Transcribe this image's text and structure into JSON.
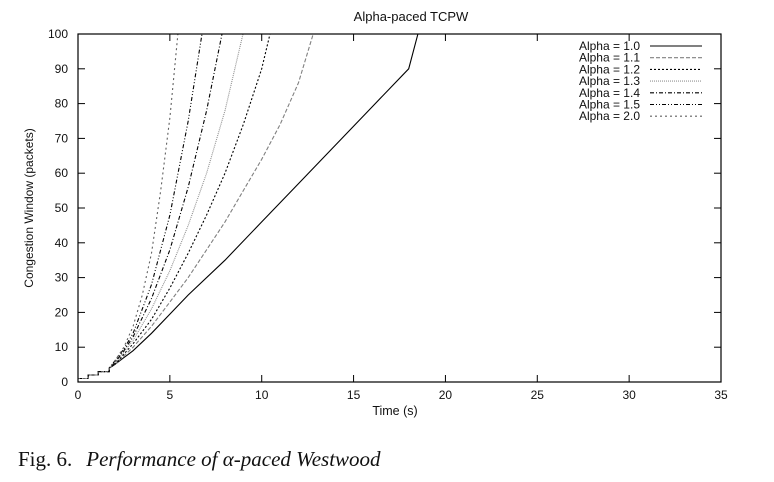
{
  "chart_data": {
    "type": "line",
    "title": "Alpha-paced TCPW",
    "xlabel": "Time (s)",
    "ylabel": "Congestion Window (packets)",
    "xlim": [
      0,
      35
    ],
    "ylim": [
      0,
      100
    ],
    "xticks": [
      0,
      5,
      10,
      15,
      20,
      25,
      30,
      35
    ],
    "yticks": [
      0,
      10,
      20,
      30,
      40,
      50,
      60,
      70,
      80,
      90,
      100
    ],
    "grid": false,
    "legend_position": "top-right",
    "series": [
      {
        "name": "Alpha = 1.0",
        "alpha": 1.0,
        "style": "solid",
        "color": "#000000",
        "reach_max_time": 18.5,
        "points": [
          [
            0,
            1
          ],
          [
            0.55,
            1
          ],
          [
            0.55,
            2
          ],
          [
            1.1,
            2
          ],
          [
            1.1,
            3
          ],
          [
            1.7,
            3
          ],
          [
            1.7,
            4
          ],
          [
            2.0,
            5
          ],
          [
            2.5,
            7
          ],
          [
            3,
            9
          ],
          [
            4,
            14
          ],
          [
            5,
            19.5
          ],
          [
            6,
            25
          ],
          [
            8,
            35
          ],
          [
            10,
            46
          ],
          [
            12,
            57
          ],
          [
            14,
            68
          ],
          [
            16,
            79
          ],
          [
            18,
            90
          ],
          [
            18.5,
            100
          ],
          [
            35,
            100
          ]
        ]
      },
      {
        "name": "Alpha = 1.1",
        "alpha": 1.1,
        "style": "dashed",
        "color": "#808080",
        "reach_max_time": 12.8,
        "points": [
          [
            0,
            1
          ],
          [
            0.55,
            1
          ],
          [
            0.55,
            2
          ],
          [
            1.1,
            2
          ],
          [
            1.1,
            3
          ],
          [
            1.7,
            3
          ],
          [
            1.7,
            4
          ],
          [
            2.0,
            5
          ],
          [
            2.5,
            7.5
          ],
          [
            3,
            10
          ],
          [
            4,
            16
          ],
          [
            5,
            23
          ],
          [
            6,
            30
          ],
          [
            7,
            38
          ],
          [
            8,
            46
          ],
          [
            9,
            55
          ],
          [
            10,
            64
          ],
          [
            11,
            74
          ],
          [
            12,
            86
          ],
          [
            12.8,
            100
          ],
          [
            35,
            100
          ]
        ]
      },
      {
        "name": "Alpha = 1.2",
        "alpha": 1.2,
        "style": "dotted",
        "color": "#000000",
        "reach_max_time": 10.45,
        "points": [
          [
            0,
            1
          ],
          [
            0.55,
            1
          ],
          [
            0.55,
            2
          ],
          [
            1.1,
            2
          ],
          [
            1.1,
            3
          ],
          [
            1.7,
            3
          ],
          [
            1.7,
            4
          ],
          [
            2.0,
            5
          ],
          [
            2.5,
            8
          ],
          [
            3,
            11
          ],
          [
            4,
            18
          ],
          [
            5,
            27
          ],
          [
            6,
            37
          ],
          [
            7,
            48
          ],
          [
            8,
            60
          ],
          [
            9,
            74
          ],
          [
            10,
            90
          ],
          [
            10.45,
            100
          ],
          [
            35,
            100
          ]
        ]
      },
      {
        "name": "Alpha = 1.3",
        "alpha": 1.3,
        "style": "fine-dotted",
        "color": "#909090",
        "reach_max_time": 8.98,
        "points": [
          [
            0,
            1
          ],
          [
            0.55,
            1
          ],
          [
            0.55,
            2
          ],
          [
            1.1,
            2
          ],
          [
            1.1,
            3
          ],
          [
            1.7,
            3
          ],
          [
            1.7,
            4
          ],
          [
            2.0,
            5.5
          ],
          [
            2.5,
            8.5
          ],
          [
            3,
            12
          ],
          [
            4,
            21
          ],
          [
            5,
            32
          ],
          [
            6,
            45
          ],
          [
            7,
            60
          ],
          [
            8,
            78
          ],
          [
            8.98,
            100
          ],
          [
            35,
            100
          ]
        ]
      },
      {
        "name": "Alpha = 1.4",
        "alpha": 1.4,
        "style": "dash-dot",
        "color": "#000000",
        "reach_max_time": 7.84,
        "points": [
          [
            0,
            1
          ],
          [
            0.55,
            1
          ],
          [
            0.55,
            2
          ],
          [
            1.1,
            2
          ],
          [
            1.1,
            3
          ],
          [
            1.7,
            3
          ],
          [
            1.7,
            4
          ],
          [
            2.0,
            5.5
          ],
          [
            2.5,
            9
          ],
          [
            3,
            13
          ],
          [
            4,
            24
          ],
          [
            5,
            38
          ],
          [
            6,
            56
          ],
          [
            7,
            78
          ],
          [
            7.84,
            100
          ],
          [
            35,
            100
          ]
        ]
      },
      {
        "name": "Alpha = 1.5",
        "alpha": 1.5,
        "style": "dash-dot-dot",
        "color": "#000000",
        "reach_max_time": 6.75,
        "points": [
          [
            0,
            1
          ],
          [
            0.55,
            1
          ],
          [
            0.55,
            2
          ],
          [
            1.1,
            2
          ],
          [
            1.1,
            3
          ],
          [
            1.7,
            3
          ],
          [
            1.7,
            4
          ],
          [
            2.0,
            6
          ],
          [
            2.5,
            9.5
          ],
          [
            3,
            14
          ],
          [
            4,
            28
          ],
          [
            5,
            48
          ],
          [
            6,
            75
          ],
          [
            6.75,
            100
          ],
          [
            35,
            100
          ]
        ]
      },
      {
        "name": "Alpha = 2.0",
        "alpha": 2.0,
        "style": "sparse-dotted",
        "color": "#606060",
        "reach_max_time": 5.44,
        "points": [
          [
            0,
            1
          ],
          [
            0.55,
            1
          ],
          [
            0.55,
            2
          ],
          [
            1.1,
            2
          ],
          [
            1.1,
            3
          ],
          [
            1.7,
            3
          ],
          [
            1.7,
            4
          ],
          [
            2.0,
            6
          ],
          [
            2.5,
            10
          ],
          [
            3,
            16
          ],
          [
            3.5,
            25
          ],
          [
            4,
            37
          ],
          [
            4.5,
            55
          ],
          [
            5,
            76
          ],
          [
            5.44,
            100
          ],
          [
            35,
            100
          ]
        ]
      }
    ]
  },
  "caption": {
    "label": "Fig. 6.",
    "text": "Performance of α-paced Westwood"
  }
}
